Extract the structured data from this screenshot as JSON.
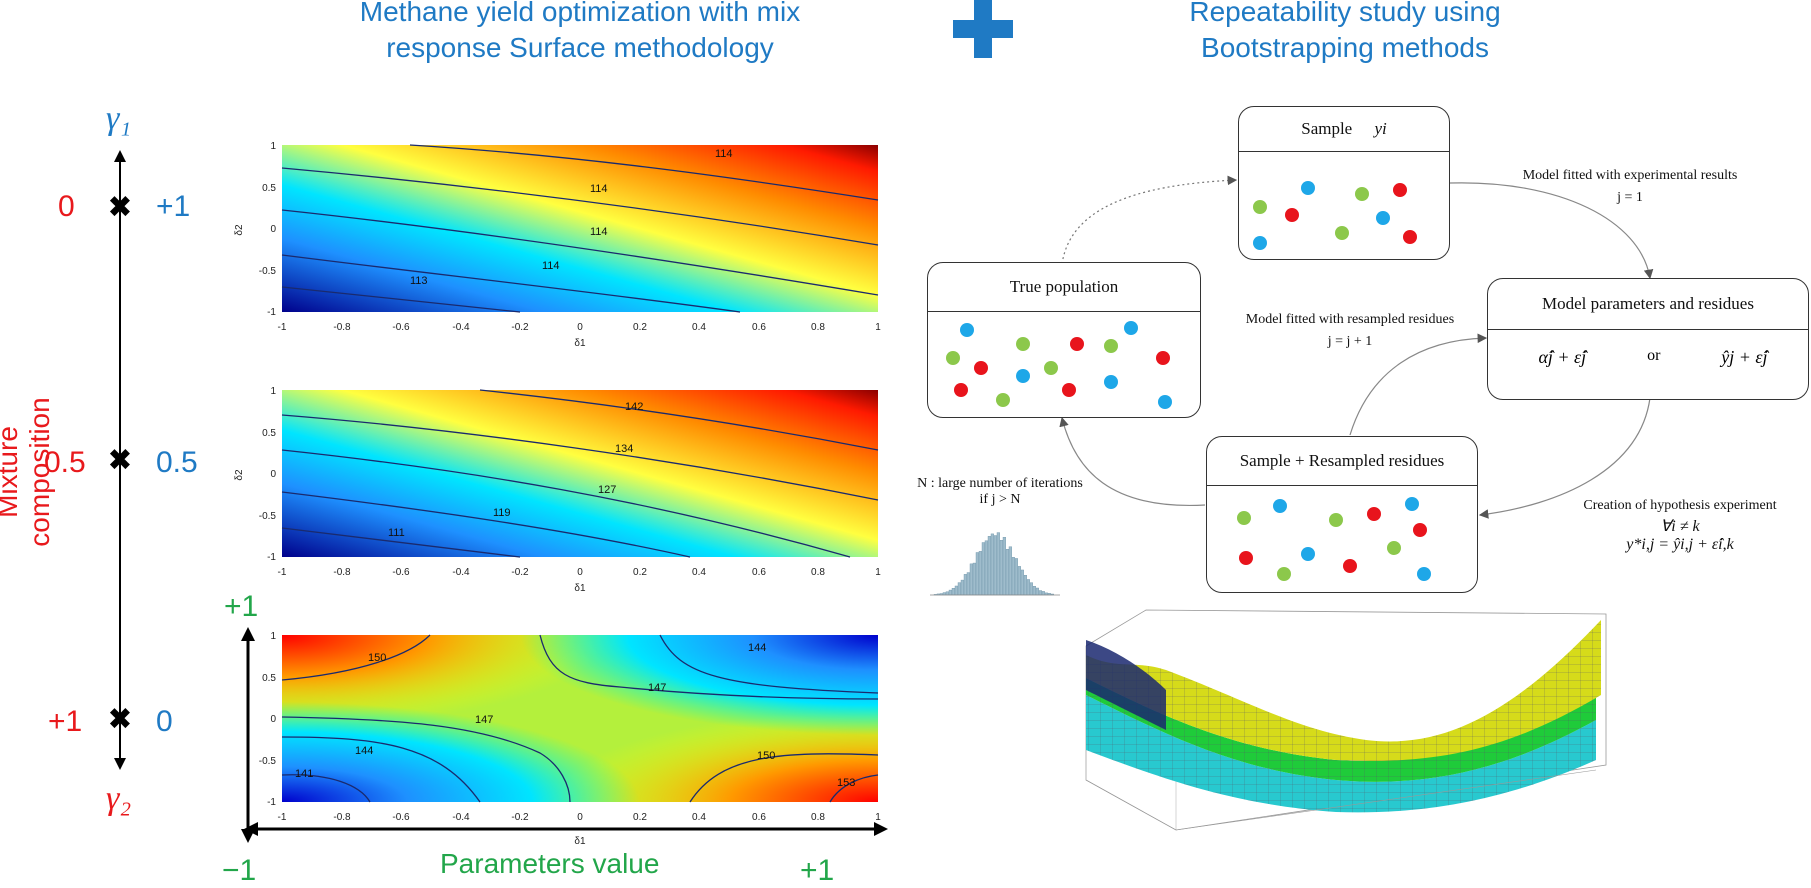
{
  "header": {
    "left_title_line1": "Methane yield optimization with mix",
    "left_title_line2": "response Surface methodology",
    "right_title_line1": "Repeatability study using",
    "right_title_line2": "Bootstrapping methods"
  },
  "mixture_axis": {
    "label": "Mixture composition",
    "gamma_top": "γ₁",
    "gamma_bottom": "γ₂",
    "points": [
      {
        "left": "0",
        "right": "+1"
      },
      {
        "left": "0.5",
        "right": "0.5"
      },
      {
        "left": "+1",
        "right": "0"
      }
    ]
  },
  "parameters": {
    "label": "Parameters value",
    "plus_top": "+1",
    "minus": "−1",
    "plus_right": "+1"
  },
  "contour_plots": {
    "x_label": "δ1",
    "y_label": "δ2",
    "x_ticks": [
      "-1",
      "-0.8",
      "-0.6",
      "-0.4",
      "-0.2",
      "0",
      "0.2",
      "0.4",
      "0.6",
      "0.8",
      "1"
    ],
    "y_ticks": [
      "1",
      "0.5",
      "0",
      "-0.5",
      "-1"
    ],
    "plot1_levels": [
      "114",
      "114",
      "114",
      "114",
      "113"
    ],
    "plot2_levels": [
      "142",
      "134",
      "127",
      "119",
      "111"
    ],
    "plot3_levels": [
      "150",
      "144",
      "147",
      "147",
      "144",
      "141",
      "150",
      "153"
    ]
  },
  "bootstrap": {
    "sample_title": "Sample",
    "sample_var": "yi",
    "true_population": "True population",
    "model_params": "Model parameters and residues",
    "model_formula_left": "α̂j + ε̂j",
    "model_or": "or",
    "model_formula_right": "ŷj + ε̂j",
    "resampled": "Sample + Resampled residues",
    "fit_experimental": "Model fitted with experimental results",
    "j_eq_1": "j = 1",
    "fit_resampled": "Model fitted with resampled residues",
    "j_inc": "j = j + 1",
    "iterations_line1": "N : large number of iterations",
    "iterations_line2": "if j > N",
    "hypothesis_line1": "Creation of hypothesis experiment",
    "hypothesis_line2": "∀i ≠ k",
    "hypothesis_line3": "y*i,j = ŷi,j + ε̂i,k"
  },
  "colors": {
    "title_blue": "#1f7ac4",
    "red": "#e8191c",
    "green": "#22a64a",
    "dot_red": "#e8141c",
    "dot_blue": "#1ea7e8",
    "dot_green": "#8cc84b"
  }
}
